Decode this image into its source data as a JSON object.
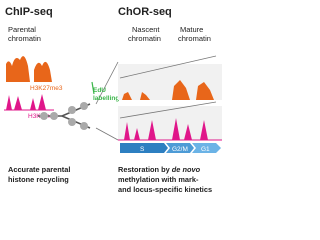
{
  "left": {
    "title": "ChIP-seq",
    "label": [
      "Parental",
      "chromatin"
    ],
    "mark1": "H3K27me3",
    "mark2": "H3K4me3",
    "caption": [
      "Accurate parental",
      "histone recycling"
    ]
  },
  "middle": {
    "label": [
      "EdU",
      "labelling"
    ]
  },
  "right": {
    "title": "ChOR-seq",
    "nascent": [
      "Nascent",
      "chromatin"
    ],
    "mature": [
      "Mature",
      "chromatin"
    ],
    "phases": [
      "S",
      "G2/M",
      "G1"
    ],
    "caption": {
      "line1a": "Restoration by ",
      "line1b": "de novo",
      "line2": "methylation with mark-",
      "line3": "and locus-specific kinetics"
    }
  }
}
